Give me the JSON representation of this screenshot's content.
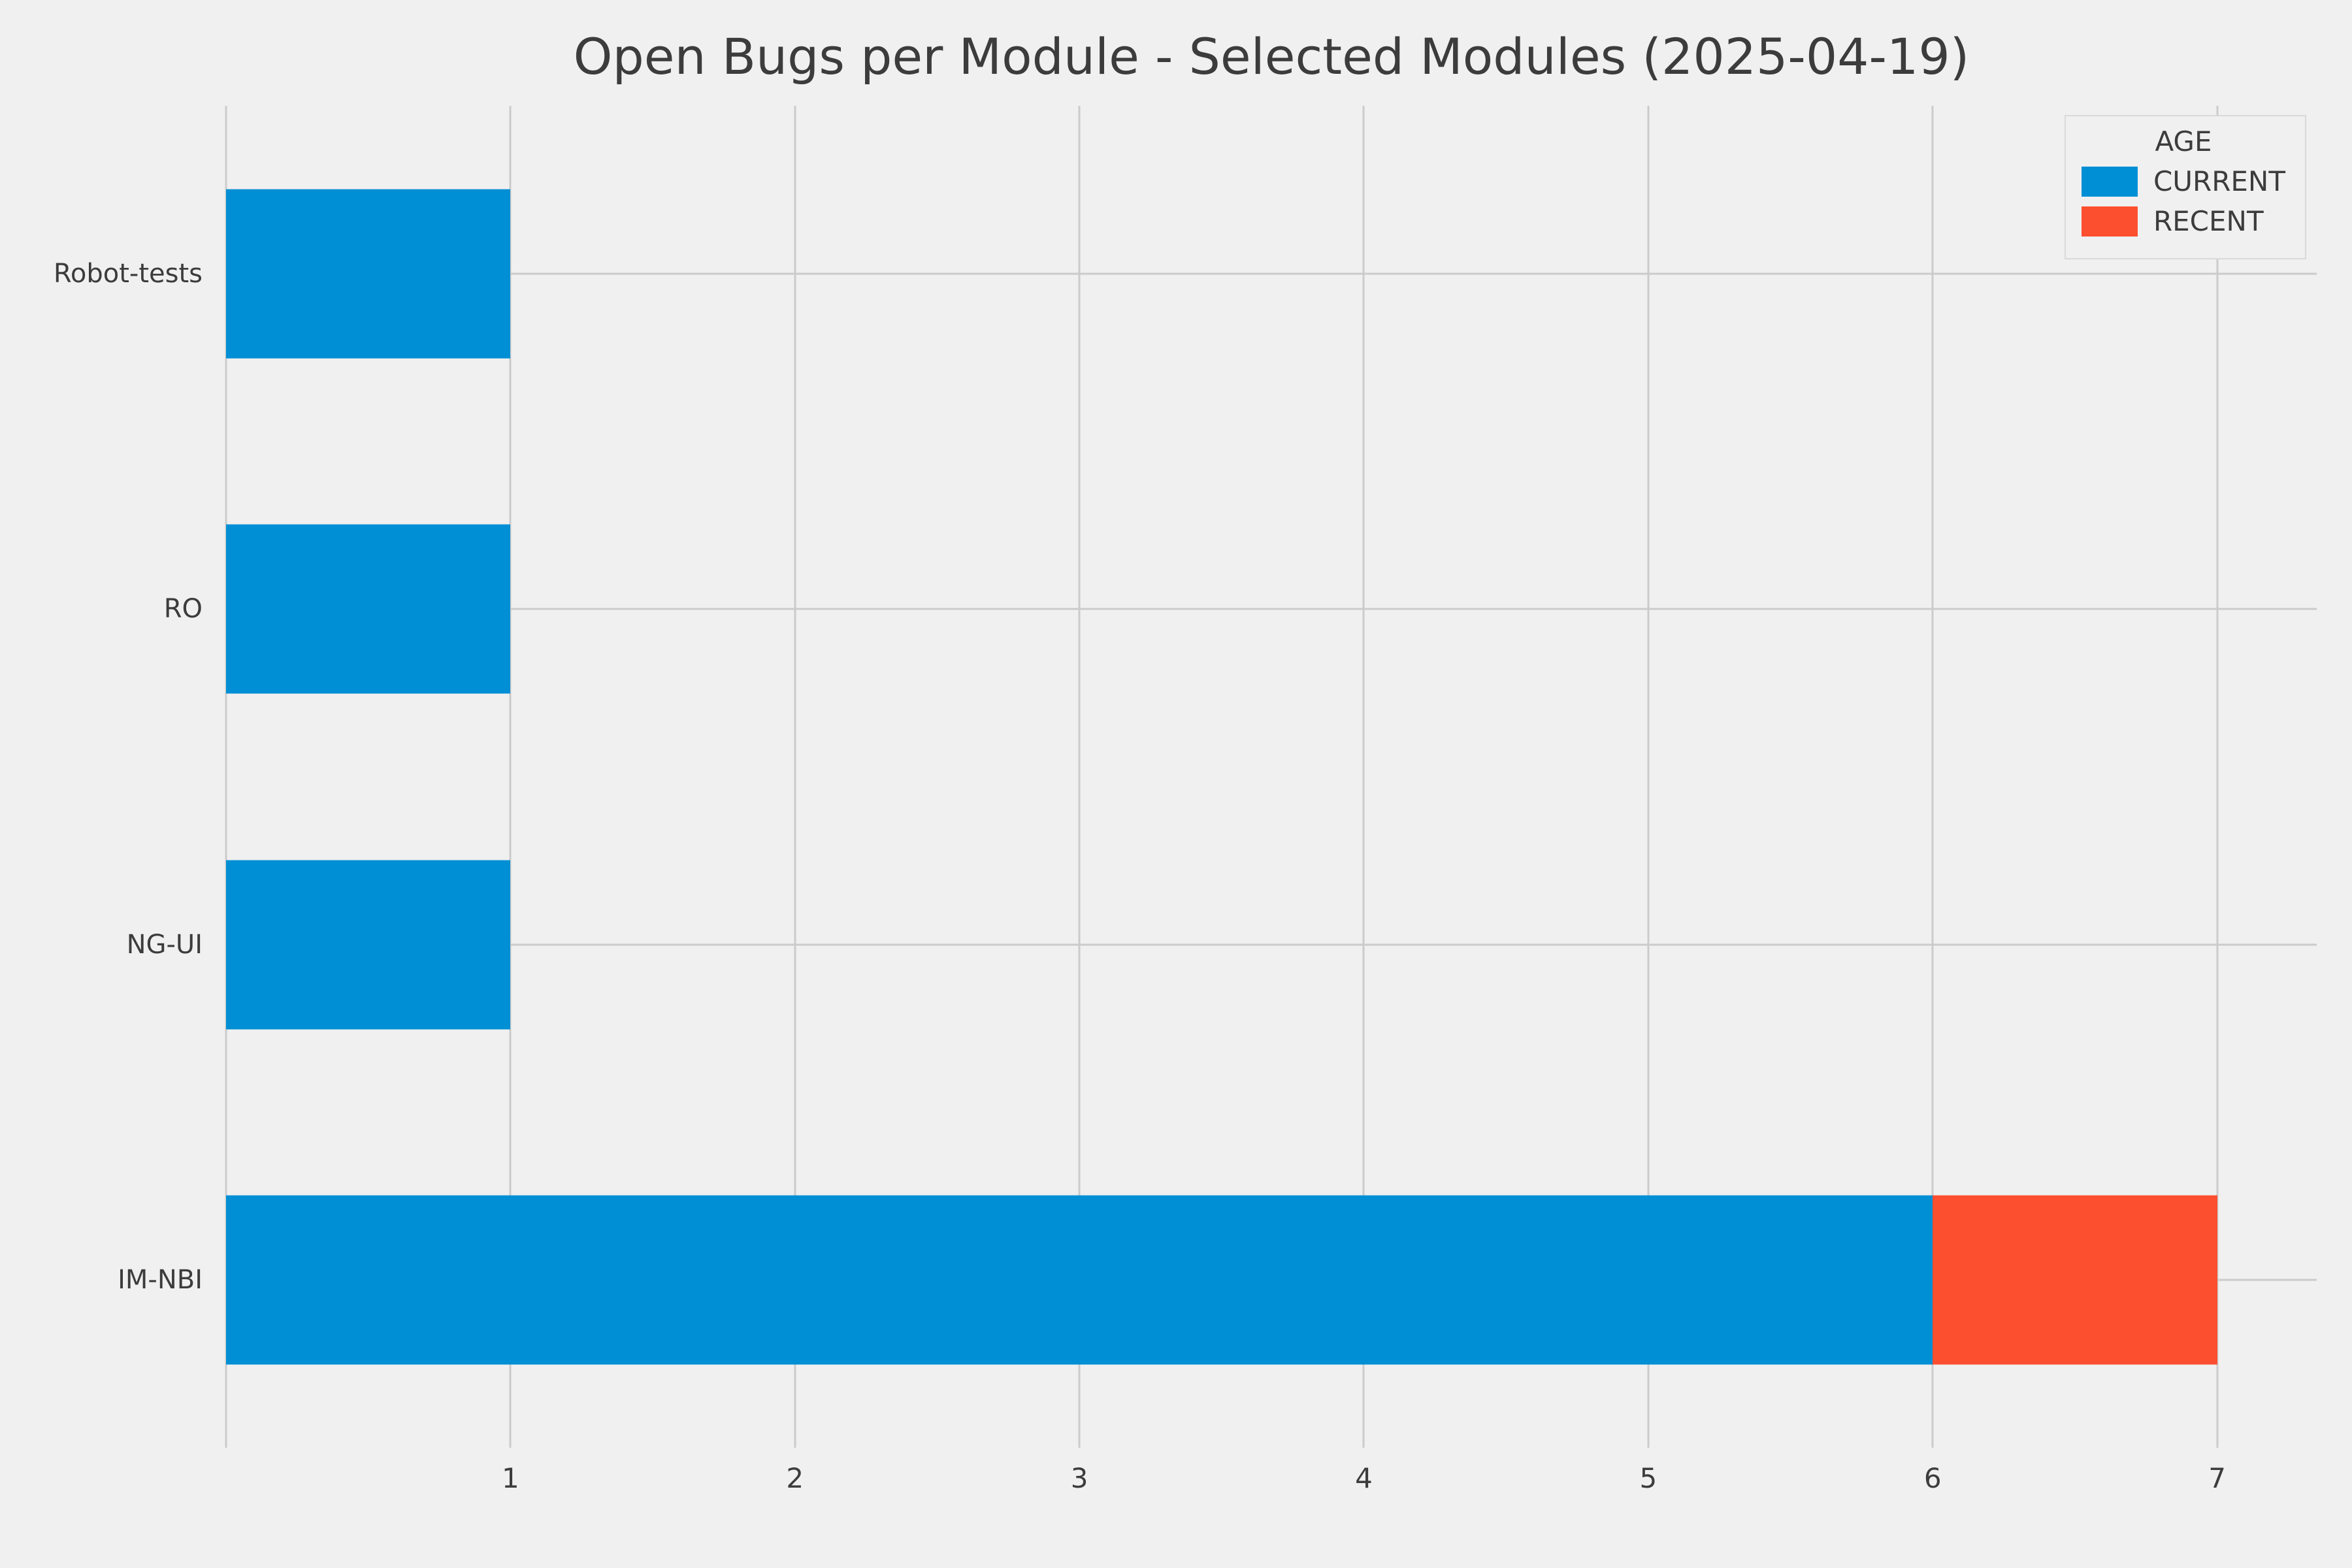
{
  "page": {
    "background": "#f0f0f0"
  },
  "chart_data": {
    "type": "bar",
    "orientation": "horizontal",
    "stacked": true,
    "title": "Open Bugs per Module - Selected Modules (2025-04-19)",
    "categories": [
      "Robot-tests",
      "RO",
      "NG-UI",
      "IM-NBI"
    ],
    "series": [
      {
        "name": "CURRENT",
        "color": "#008fd5",
        "values": [
          1,
          1,
          1,
          6
        ]
      },
      {
        "name": "RECENT",
        "color": "#fc4f30",
        "values": [
          0,
          0,
          0,
          1
        ]
      }
    ],
    "legend": {
      "title": "AGE",
      "position": "upper-right"
    },
    "x_ticks": [
      1,
      2,
      3,
      4,
      5,
      6,
      7
    ],
    "grid_x_values": [
      0,
      1,
      2,
      3,
      4,
      5,
      6,
      7
    ],
    "xlim": [
      0,
      7.35
    ],
    "grid": true,
    "colors": {
      "grid": "#cbcbcb",
      "background": "#f0f0f0",
      "text": "#3c3c3c"
    }
  }
}
